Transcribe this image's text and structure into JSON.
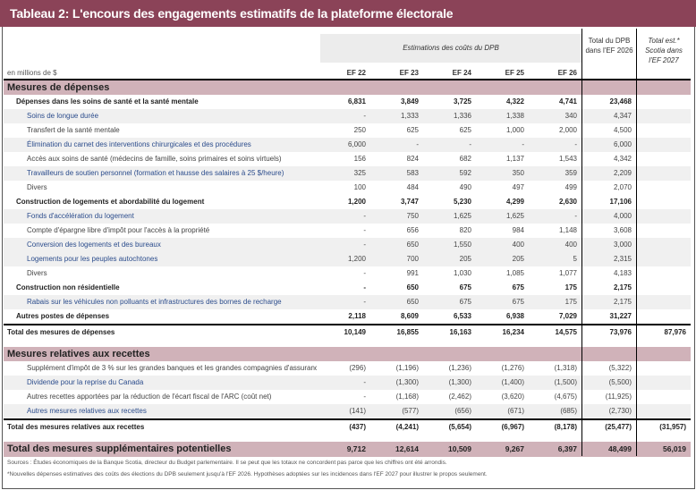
{
  "title": "Tableau 2: L'encours des engagements estimatifs de la plateforme électorale",
  "header": {
    "estimations": "Estimations des coûts du DPB",
    "total_dpb": [
      "Total du DPB",
      "dans l'EF 2026"
    ],
    "total_est": [
      "Total est.*",
      "Scotia dans",
      "l'EF 2027"
    ],
    "units": "en millions de $",
    "columns": [
      "EF 22",
      "EF 23",
      "EF 24",
      "EF 25",
      "EF 26"
    ]
  },
  "rows": [
    {
      "type": "section",
      "label": "Mesures de dépenses",
      "values": []
    },
    {
      "type": "bold",
      "label": "Dépenses dans les soins de santé et la santé mentale",
      "values": [
        "6,831",
        "3,849",
        "3,725",
        "4,322",
        "4,741",
        "23,468",
        ""
      ]
    },
    {
      "type": "item shade blue",
      "label": "Soins de longue durée",
      "values": [
        "-",
        "1,333",
        "1,336",
        "1,338",
        "340",
        "4,347",
        ""
      ]
    },
    {
      "type": "item",
      "label": "Transfert de la santé mentale",
      "values": [
        "250",
        "625",
        "625",
        "1,000",
        "2,000",
        "4,500",
        ""
      ]
    },
    {
      "type": "item shade blue",
      "label": "Élimination du carnet des interventions chirurgicales et des procédures",
      "values": [
        "6,000",
        "-",
        "-",
        "-",
        "-",
        "6,000",
        ""
      ]
    },
    {
      "type": "item",
      "label": "Accès aux soins de santé (médecins de famille, soins primaires et soins virtuels)",
      "values": [
        "156",
        "824",
        "682",
        "1,137",
        "1,543",
        "4,342",
        ""
      ]
    },
    {
      "type": "item shade blue",
      "label": "Travailleurs de soutien personnel (formation et hausse des salaires à 25 $/heure)",
      "values": [
        "325",
        "583",
        "592",
        "350",
        "359",
        "2,209",
        ""
      ]
    },
    {
      "type": "item",
      "label": "Divers",
      "values": [
        "100",
        "484",
        "490",
        "497",
        "499",
        "2,070",
        ""
      ]
    },
    {
      "type": "bold",
      "label": "Construction de logements et abordabilité du logement",
      "values": [
        "1,200",
        "3,747",
        "5,230",
        "4,299",
        "2,630",
        "17,106",
        ""
      ]
    },
    {
      "type": "item shade blue",
      "label": "Fonds d'accélération du logement",
      "values": [
        "-",
        "750",
        "1,625",
        "1,625",
        "-",
        "4,000",
        ""
      ]
    },
    {
      "type": "item",
      "label": "Compte d'épargne libre d'impôt pour l'accès à la propriété",
      "values": [
        "-",
        "656",
        "820",
        "984",
        "1,148",
        "3,608",
        ""
      ]
    },
    {
      "type": "item shade blue",
      "label": "Conversion des logements et des bureaux",
      "values": [
        "-",
        "650",
        "1,550",
        "400",
        "400",
        "3,000",
        ""
      ]
    },
    {
      "type": "item shade blue",
      "label": "Logements pour les peuples autochtones",
      "values": [
        "1,200",
        "700",
        "205",
        "205",
        "5",
        "2,315",
        ""
      ]
    },
    {
      "type": "item",
      "label": "Divers",
      "values": [
        "-",
        "991",
        "1,030",
        "1,085",
        "1,077",
        "4,183",
        ""
      ]
    },
    {
      "type": "bold",
      "label": "Construction non résidentielle",
      "values": [
        "-",
        "650",
        "675",
        "675",
        "175",
        "2,175",
        ""
      ]
    },
    {
      "type": "item shade blue",
      "label": "Rabais sur les véhicules non polluants et infrastructures des bornes de recharge",
      "values": [
        "-",
        "650",
        "675",
        "675",
        "175",
        "2,175",
        ""
      ]
    },
    {
      "type": "bold",
      "label": "Autres postes de dépenses",
      "values": [
        "2,118",
        "8,609",
        "6,533",
        "6,938",
        "7,029",
        "31,227",
        ""
      ]
    },
    {
      "type": "total",
      "label": "Total des mesures de dépenses",
      "values": [
        "10,149",
        "16,855",
        "16,163",
        "16,234",
        "14,575",
        "73,976",
        "87,976"
      ]
    },
    {
      "type": "blank",
      "label": "",
      "values": []
    },
    {
      "type": "section",
      "label": "Mesures relatives aux recettes",
      "values": []
    },
    {
      "type": "item",
      "label": "Supplément d'impôt de 3 % sur les grandes banques et les grandes compagnies d'assurance",
      "values": [
        "(296)",
        "(1,196)",
        "(1,236)",
        "(1,276)",
        "(1,318)",
        "(5,322)",
        ""
      ]
    },
    {
      "type": "item shade blue",
      "label": "Dividende pour la reprise du Canada",
      "values": [
        "-",
        "(1,300)",
        "(1,300)",
        "(1,400)",
        "(1,500)",
        "(5,500)",
        ""
      ]
    },
    {
      "type": "item",
      "label": "Autres recettes apportées par la réduction de l'écart fiscal de l'ARC (coût net)",
      "values": [
        "-",
        "(1,168)",
        "(2,462)",
        "(3,620)",
        "(4,675)",
        "(11,925)",
        ""
      ]
    },
    {
      "type": "item shade blue",
      "label": "Autres mesures relatives aux recettes",
      "values": [
        "(141)",
        "(577)",
        "(656)",
        "(671)",
        "(685)",
        "(2,730)",
        ""
      ]
    },
    {
      "type": "total",
      "label": "Total des mesures relatives aux recettes",
      "values": [
        "(437)",
        "(4,241)",
        "(5,654)",
        "(6,967)",
        "(8,178)",
        "(25,477)",
        "(31,957)"
      ]
    },
    {
      "type": "blank",
      "label": "",
      "values": []
    },
    {
      "type": "grand",
      "label": "Total des mesures supplémentaires potentielles",
      "values": [
        "9,712",
        "12,614",
        "10,509",
        "9,267",
        "6,397",
        "48,499",
        "56,019"
      ]
    }
  ],
  "footnotes": [
    "Sources : Études économiques de la Banque Scotia, directeur du Budget parlementaire. Il se peut que les totaux ne concordent pas parce que les chiffres ont été arrondis.",
    "*Nouvelles dépenses estimatives des coûts des élections du DPB seulement jusqu'à l'EF 2026. Hypothèses adoptées sur les incidences dans l'EF 2027 pour illustrer le propos seulement."
  ]
}
